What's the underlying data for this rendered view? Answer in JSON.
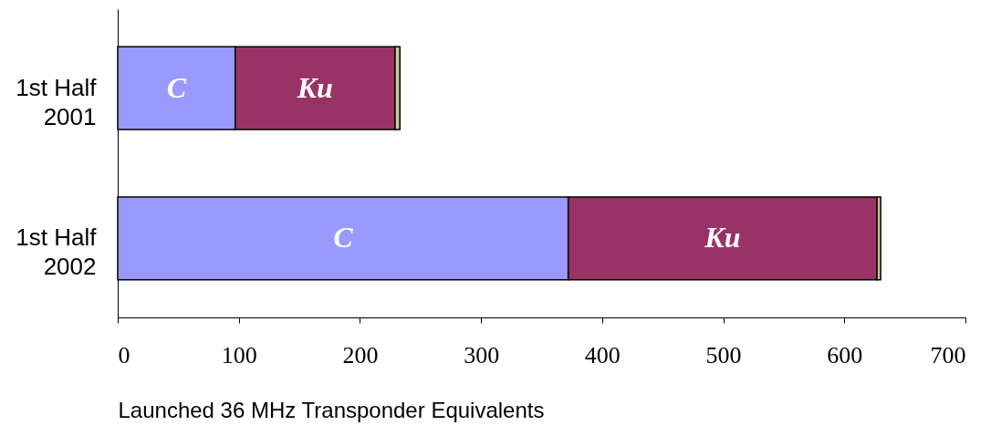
{
  "chart_data": {
    "type": "bar",
    "orientation": "horizontal",
    "stacked": true,
    "xlabel": "Launched 36 MHz Transponder Equivalents",
    "categories": [
      "1st Half 2001",
      "1st Half 2002"
    ],
    "series": [
      {
        "name": "C",
        "color": "#9999ff",
        "values": [
          97,
          372
        ]
      },
      {
        "name": "Ku",
        "color": "#993366",
        "values": [
          132,
          255
        ]
      },
      {
        "color": "#c8c89a",
        "values": [
          4,
          3
        ]
      }
    ],
    "xlim": [
      0,
      700
    ],
    "xticks": [
      0,
      100,
      200,
      300,
      400,
      500,
      600,
      700
    ],
    "grid": false
  }
}
